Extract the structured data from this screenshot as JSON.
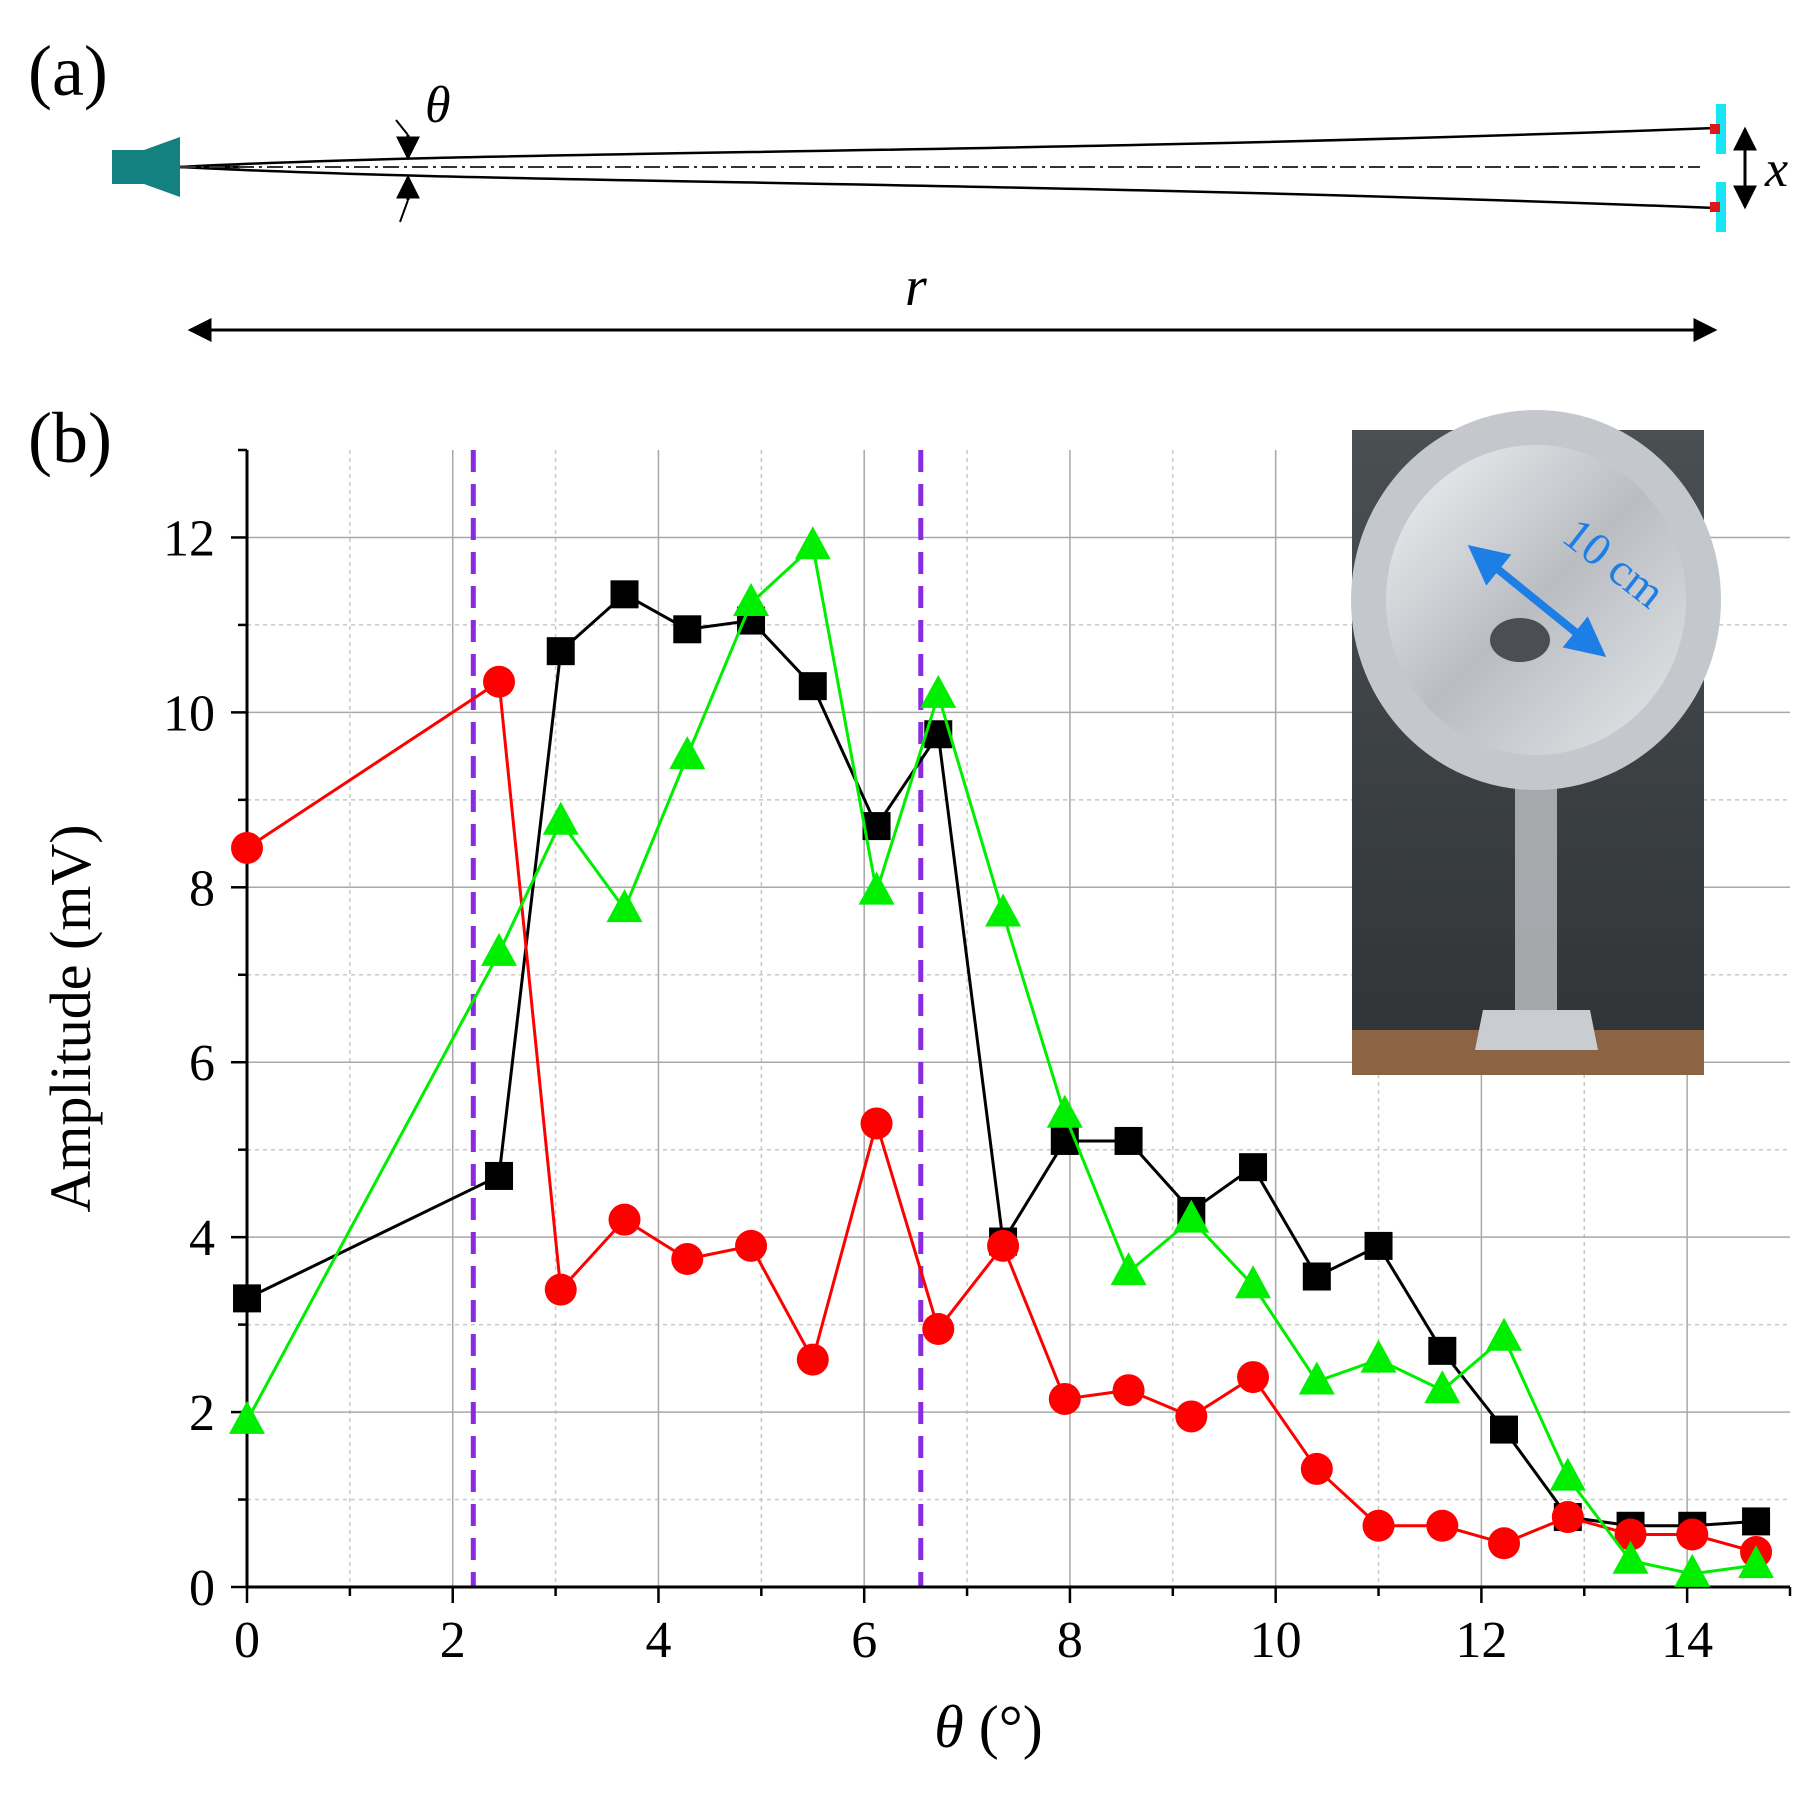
{
  "panel_a": {
    "label": "(a)",
    "theta_symbol": "θ",
    "x_symbol": "x",
    "r_symbol": "r",
    "colors": {
      "emitter": "#13817f",
      "sensor": "#18e6f5",
      "sensor_tip": "#e01818"
    }
  },
  "panel_b": {
    "label": "(b)",
    "inset": {
      "caption": "10 cm"
    }
  },
  "chart_data": {
    "type": "line",
    "title": "",
    "xlabel_symbol": "θ",
    "xlabel_unit": "(°)",
    "ylabel": "Amplitude (mV)",
    "xlim": [
      0,
      15
    ],
    "ylim": [
      0,
      13
    ],
    "xticks": [
      0,
      2,
      4,
      6,
      8,
      10,
      12,
      14
    ],
    "yticks": [
      0,
      2,
      4,
      6,
      8,
      10,
      12
    ],
    "grid": true,
    "vlines": [
      2.2,
      6.55
    ],
    "vline_color": "#8a2be2",
    "series": [
      {
        "name": "black squares",
        "marker": "square",
        "color": "#000000",
        "x": [
          0,
          2.45,
          3.05,
          3.67,
          4.28,
          4.9,
          5.5,
          6.12,
          6.72,
          7.35,
          7.95,
          8.57,
          9.18,
          9.78,
          10.4,
          11.0,
          11.62,
          12.22,
          12.84,
          13.45,
          14.05,
          14.67
        ],
        "y": [
          3.3,
          4.7,
          10.7,
          11.35,
          10.95,
          11.05,
          10.3,
          8.7,
          9.75,
          3.95,
          5.1,
          5.1,
          4.3,
          4.8,
          3.55,
          3.9,
          2.7,
          1.8,
          0.8,
          0.7,
          0.7,
          0.75
        ]
      },
      {
        "name": "red circles",
        "marker": "circle",
        "color": "#ff0000",
        "x": [
          0,
          2.45,
          3.05,
          3.67,
          4.28,
          4.9,
          5.5,
          6.12,
          6.72,
          7.35,
          7.95,
          8.57,
          9.18,
          9.78,
          10.4,
          11.0,
          11.62,
          12.22,
          12.84,
          13.45,
          14.05,
          14.67
        ],
        "y": [
          8.45,
          10.35,
          3.4,
          4.2,
          3.75,
          3.9,
          2.6,
          5.3,
          2.95,
          3.9,
          2.15,
          2.25,
          1.95,
          2.4,
          1.35,
          0.7,
          0.7,
          0.5,
          0.8,
          0.6,
          0.6,
          0.4
        ]
      },
      {
        "name": "green triangles",
        "marker": "triangle",
        "color": "#00ee00",
        "x": [
          0,
          2.45,
          3.05,
          3.67,
          4.28,
          4.9,
          5.5,
          6.12,
          6.72,
          7.35,
          7.95,
          8.57,
          9.18,
          9.78,
          10.4,
          11.0,
          11.62,
          12.22,
          12.84,
          13.45,
          14.05,
          14.67
        ],
        "y": [
          1.9,
          7.25,
          8.75,
          7.75,
          9.5,
          11.25,
          11.9,
          7.95,
          10.2,
          7.7,
          5.4,
          3.6,
          4.2,
          3.45,
          2.35,
          2.6,
          2.25,
          2.85,
          1.25,
          0.3,
          0.15,
          0.25
        ]
      }
    ]
  }
}
